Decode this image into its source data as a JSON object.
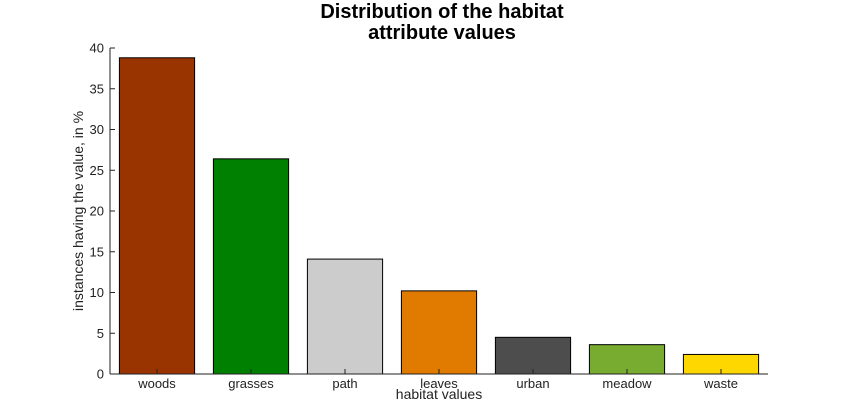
{
  "chart_data": {
    "type": "bar",
    "title_lines": [
      "Distribution of the habitat",
      "attribute values"
    ],
    "xlabel": "habitat values",
    "ylabel": "instances having the value, in %",
    "categories": [
      "woods",
      "grasses",
      "path",
      "leaves",
      "urban",
      "meadow",
      "waste"
    ],
    "values": [
      38.8,
      26.4,
      14.1,
      10.2,
      4.5,
      3.6,
      2.4
    ],
    "colors": [
      "#993300",
      "#008000",
      "#cccccc",
      "#e07b00",
      "#4d4d4d",
      "#77ac30",
      "#ffd700"
    ],
    "ylim": [
      0,
      40
    ],
    "yticks": [
      0,
      5,
      10,
      15,
      20,
      25,
      30,
      35,
      40
    ],
    "grid": false,
    "legend": "none"
  }
}
